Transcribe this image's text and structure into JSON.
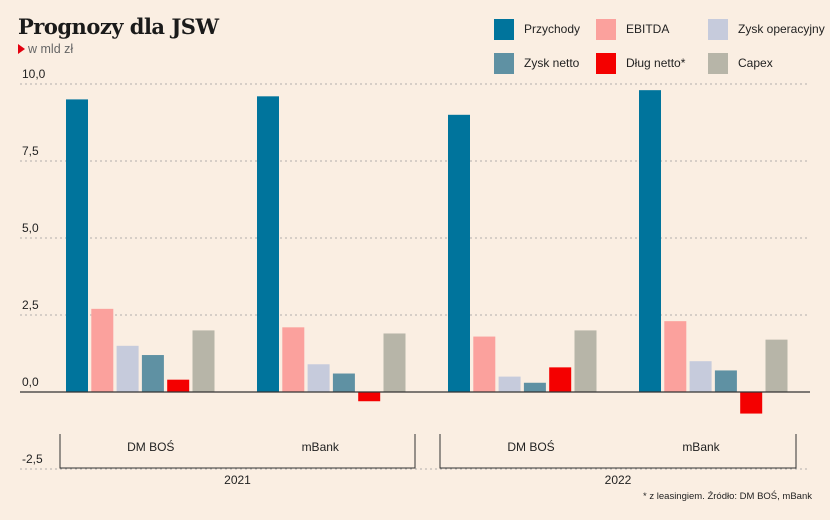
{
  "title": "Prognozy dla JSW",
  "subtitle": "w mld zł",
  "footnote": "* z leasingiem. Źródło: DM BOŚ, mBank",
  "colors": {
    "background": "#faeee2",
    "grid": "#9a9a9a",
    "axis": "#333333",
    "subtitle_marker": "#e3000f"
  },
  "chart_data": {
    "type": "bar",
    "title": "Prognozy dla JSW",
    "ylabel": "w mld zł",
    "ylim": [
      -2.5,
      10.0
    ],
    "yticks": [
      "10,0",
      "7,5",
      "5,0",
      "2,5",
      "0,0",
      "-2,5"
    ],
    "ytick_values": [
      10.0,
      7.5,
      5.0,
      2.5,
      0.0,
      -2.5
    ],
    "grid": true,
    "legend_position": "top-right",
    "groups": [
      {
        "year": "2021",
        "categories": [
          "DM BOŚ",
          "mBank"
        ]
      },
      {
        "year": "2022",
        "categories": [
          "DM BOŚ",
          "mBank"
        ]
      }
    ],
    "categories": [
      "DM BOŚ 2021",
      "mBank 2021",
      "DM BOŚ 2022",
      "mBank 2022"
    ],
    "series": [
      {
        "name": "Przychody",
        "color": "#00749c",
        "values": [
          9.5,
          9.6,
          9.0,
          9.8
        ]
      },
      {
        "name": "EBITDA",
        "color": "#fba19d",
        "values": [
          2.7,
          2.1,
          1.8,
          2.3
        ]
      },
      {
        "name": "Zysk operacyjny",
        "color": "#c6cbdc",
        "values": [
          1.5,
          0.9,
          0.5,
          1.0
        ]
      },
      {
        "name": "Zysk netto",
        "color": "#5f91a3",
        "values": [
          1.2,
          0.6,
          0.3,
          0.7
        ]
      },
      {
        "name": "Dług netto*",
        "color": "#f40000",
        "values": [
          0.4,
          -0.3,
          0.8,
          -0.7
        ]
      },
      {
        "name": "Capex",
        "color": "#b7b5a8",
        "values": [
          2.0,
          1.9,
          2.0,
          1.7
        ]
      }
    ]
  }
}
